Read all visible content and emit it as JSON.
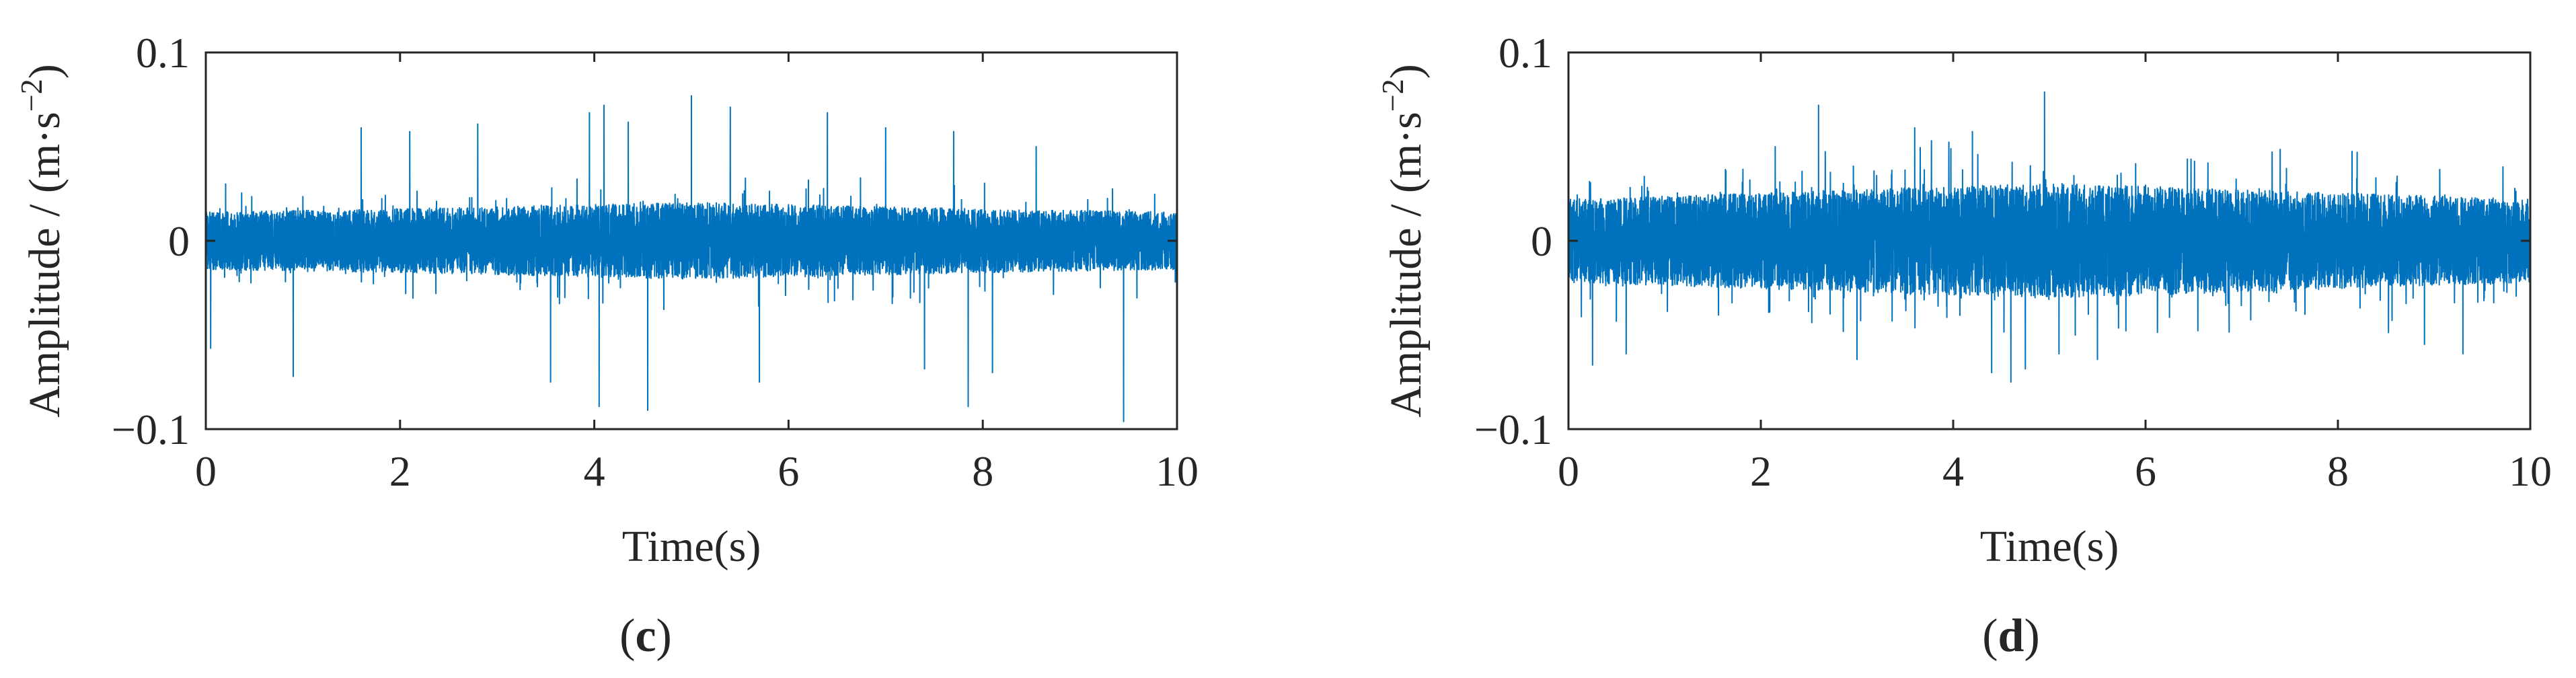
{
  "colors": {
    "signal": "#0072BD",
    "axes": "#262626",
    "background": "#ffffff"
  },
  "chart_data": [
    {
      "type": "line",
      "panel_label": "c",
      "xlabel": "Time(s)",
      "ylabel": "Amplitude / (m·s",
      "ylabel_superscript": "−2",
      "ylabel_close": ")",
      "xlim": [
        0,
        10
      ],
      "ylim": [
        -0.1,
        0.1
      ],
      "xticks": [
        0,
        2,
        4,
        6,
        8,
        10
      ],
      "xtick_labels": [
        "0",
        "2",
        "4",
        "6",
        "8",
        "10"
      ],
      "yticks": [
        -0.1,
        0,
        0.1
      ],
      "ytick_labels": [
        "−0.1",
        "0",
        "0.1"
      ],
      "grid": false,
      "series": [
        {
          "color": "#0072BD",
          "sample_rate_hz": 1000,
          "band_envelope": [
            {
              "t": 0,
              "amp": 0.018
            },
            {
              "t": 2,
              "amp": 0.02
            },
            {
              "t": 5,
              "amp": 0.024
            },
            {
              "t": 8,
              "amp": 0.02
            },
            {
              "t": 10,
              "amp": 0.018
            }
          ],
          "peaks": [
            {
              "t": 0.05,
              "y": -0.057
            },
            {
              "t": 0.9,
              "y": -0.072
            },
            {
              "t": 1.6,
              "y": 0.06
            },
            {
              "t": 2.1,
              "y": 0.058
            },
            {
              "t": 2.8,
              "y": 0.062
            },
            {
              "t": 3.55,
              "y": -0.075
            },
            {
              "t": 3.95,
              "y": 0.068
            },
            {
              "t": 4.05,
              "y": -0.088
            },
            {
              "t": 4.1,
              "y": 0.072
            },
            {
              "t": 4.35,
              "y": 0.063
            },
            {
              "t": 4.55,
              "y": -0.09
            },
            {
              "t": 5.0,
              "y": 0.077
            },
            {
              "t": 5.4,
              "y": 0.071
            },
            {
              "t": 5.7,
              "y": -0.075
            },
            {
              "t": 6.4,
              "y": 0.068
            },
            {
              "t": 7.0,
              "y": 0.06
            },
            {
              "t": 7.4,
              "y": -0.068
            },
            {
              "t": 7.7,
              "y": 0.058
            },
            {
              "t": 7.85,
              "y": -0.088
            },
            {
              "t": 8.1,
              "y": -0.07
            },
            {
              "t": 8.55,
              "y": 0.05
            },
            {
              "t": 9.45,
              "y": -0.096
            }
          ]
        }
      ]
    },
    {
      "type": "line",
      "panel_label": "d",
      "xlabel": "Time(s)",
      "ylabel": "Amplitude / (m·s",
      "ylabel_superscript": "−2",
      "ylabel_close": ")",
      "xlim": [
        0,
        10
      ],
      "ylim": [
        -0.1,
        0.1
      ],
      "xticks": [
        0,
        2,
        4,
        6,
        8,
        10
      ],
      "xtick_labels": [
        "0",
        "2",
        "4",
        "6",
        "8",
        "10"
      ],
      "yticks": [
        -0.1,
        0,
        0.1
      ],
      "ytick_labels": [
        "−0.1",
        "0",
        "0.1"
      ],
      "grid": false,
      "series": [
        {
          "color": "#0072BD",
          "sample_rate_hz": 1000,
          "band_envelope": [
            {
              "t": 0,
              "amp": 0.026
            },
            {
              "t": 2,
              "amp": 0.03
            },
            {
              "t": 5,
              "amp": 0.036
            },
            {
              "t": 8,
              "amp": 0.03
            },
            {
              "t": 10,
              "amp": 0.026
            }
          ],
          "peaks": [
            {
              "t": 0.25,
              "y": -0.066
            },
            {
              "t": 0.6,
              "y": -0.06
            },
            {
              "t": 2.15,
              "y": 0.05
            },
            {
              "t": 2.6,
              "y": 0.072
            },
            {
              "t": 3.0,
              "y": -0.063
            },
            {
              "t": 3.6,
              "y": 0.06
            },
            {
              "t": 4.2,
              "y": 0.058
            },
            {
              "t": 4.4,
              "y": -0.07
            },
            {
              "t": 4.6,
              "y": -0.075
            },
            {
              "t": 4.75,
              "y": -0.068
            },
            {
              "t": 4.95,
              "y": 0.079
            },
            {
              "t": 5.1,
              "y": -0.06
            },
            {
              "t": 5.5,
              "y": -0.063
            },
            {
              "t": 8.2,
              "y": 0.047
            },
            {
              "t": 8.9,
              "y": -0.055
            },
            {
              "t": 9.3,
              "y": -0.06
            }
          ]
        }
      ]
    }
  ]
}
